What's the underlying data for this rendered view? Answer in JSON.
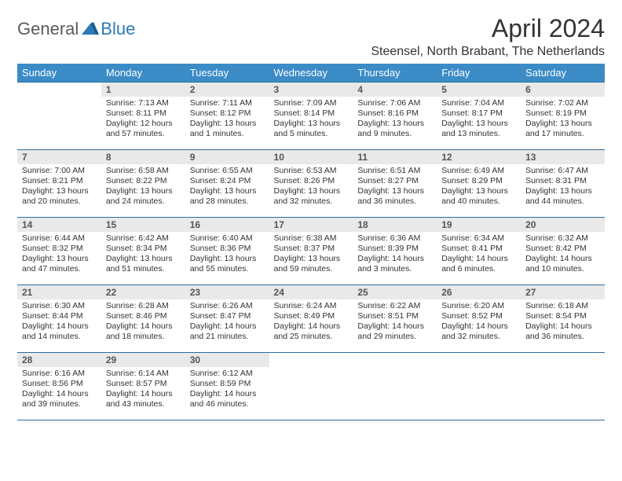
{
  "logo": {
    "text1": "General",
    "text2": "Blue"
  },
  "title": "April 2024",
  "location": "Steensel, North Brabant, The Netherlands",
  "colors": {
    "header_bg": "#3b8bc7",
    "header_text": "#ffffff",
    "daynum_bg": "#e9e9e9",
    "border": "#2f6a9c",
    "logo_blue": "#2a7ab8"
  },
  "dow": [
    "Sunday",
    "Monday",
    "Tuesday",
    "Wednesday",
    "Thursday",
    "Friday",
    "Saturday"
  ],
  "weeks": [
    [
      {
        "n": "",
        "sr": "",
        "ss": "",
        "dl": ""
      },
      {
        "n": "1",
        "sr": "Sunrise: 7:13 AM",
        "ss": "Sunset: 8:11 PM",
        "dl": "Daylight: 12 hours and 57 minutes."
      },
      {
        "n": "2",
        "sr": "Sunrise: 7:11 AM",
        "ss": "Sunset: 8:12 PM",
        "dl": "Daylight: 13 hours and 1 minutes."
      },
      {
        "n": "3",
        "sr": "Sunrise: 7:09 AM",
        "ss": "Sunset: 8:14 PM",
        "dl": "Daylight: 13 hours and 5 minutes."
      },
      {
        "n": "4",
        "sr": "Sunrise: 7:06 AM",
        "ss": "Sunset: 8:16 PM",
        "dl": "Daylight: 13 hours and 9 minutes."
      },
      {
        "n": "5",
        "sr": "Sunrise: 7:04 AM",
        "ss": "Sunset: 8:17 PM",
        "dl": "Daylight: 13 hours and 13 minutes."
      },
      {
        "n": "6",
        "sr": "Sunrise: 7:02 AM",
        "ss": "Sunset: 8:19 PM",
        "dl": "Daylight: 13 hours and 17 minutes."
      }
    ],
    [
      {
        "n": "7",
        "sr": "Sunrise: 7:00 AM",
        "ss": "Sunset: 8:21 PM",
        "dl": "Daylight: 13 hours and 20 minutes."
      },
      {
        "n": "8",
        "sr": "Sunrise: 6:58 AM",
        "ss": "Sunset: 8:22 PM",
        "dl": "Daylight: 13 hours and 24 minutes."
      },
      {
        "n": "9",
        "sr": "Sunrise: 6:55 AM",
        "ss": "Sunset: 8:24 PM",
        "dl": "Daylight: 13 hours and 28 minutes."
      },
      {
        "n": "10",
        "sr": "Sunrise: 6:53 AM",
        "ss": "Sunset: 8:26 PM",
        "dl": "Daylight: 13 hours and 32 minutes."
      },
      {
        "n": "11",
        "sr": "Sunrise: 6:51 AM",
        "ss": "Sunset: 8:27 PM",
        "dl": "Daylight: 13 hours and 36 minutes."
      },
      {
        "n": "12",
        "sr": "Sunrise: 6:49 AM",
        "ss": "Sunset: 8:29 PM",
        "dl": "Daylight: 13 hours and 40 minutes."
      },
      {
        "n": "13",
        "sr": "Sunrise: 6:47 AM",
        "ss": "Sunset: 8:31 PM",
        "dl": "Daylight: 13 hours and 44 minutes."
      }
    ],
    [
      {
        "n": "14",
        "sr": "Sunrise: 6:44 AM",
        "ss": "Sunset: 8:32 PM",
        "dl": "Daylight: 13 hours and 47 minutes."
      },
      {
        "n": "15",
        "sr": "Sunrise: 6:42 AM",
        "ss": "Sunset: 8:34 PM",
        "dl": "Daylight: 13 hours and 51 minutes."
      },
      {
        "n": "16",
        "sr": "Sunrise: 6:40 AM",
        "ss": "Sunset: 8:36 PM",
        "dl": "Daylight: 13 hours and 55 minutes."
      },
      {
        "n": "17",
        "sr": "Sunrise: 6:38 AM",
        "ss": "Sunset: 8:37 PM",
        "dl": "Daylight: 13 hours and 59 minutes."
      },
      {
        "n": "18",
        "sr": "Sunrise: 6:36 AM",
        "ss": "Sunset: 8:39 PM",
        "dl": "Daylight: 14 hours and 3 minutes."
      },
      {
        "n": "19",
        "sr": "Sunrise: 6:34 AM",
        "ss": "Sunset: 8:41 PM",
        "dl": "Daylight: 14 hours and 6 minutes."
      },
      {
        "n": "20",
        "sr": "Sunrise: 6:32 AM",
        "ss": "Sunset: 8:42 PM",
        "dl": "Daylight: 14 hours and 10 minutes."
      }
    ],
    [
      {
        "n": "21",
        "sr": "Sunrise: 6:30 AM",
        "ss": "Sunset: 8:44 PM",
        "dl": "Daylight: 14 hours and 14 minutes."
      },
      {
        "n": "22",
        "sr": "Sunrise: 6:28 AM",
        "ss": "Sunset: 8:46 PM",
        "dl": "Daylight: 14 hours and 18 minutes."
      },
      {
        "n": "23",
        "sr": "Sunrise: 6:26 AM",
        "ss": "Sunset: 8:47 PM",
        "dl": "Daylight: 14 hours and 21 minutes."
      },
      {
        "n": "24",
        "sr": "Sunrise: 6:24 AM",
        "ss": "Sunset: 8:49 PM",
        "dl": "Daylight: 14 hours and 25 minutes."
      },
      {
        "n": "25",
        "sr": "Sunrise: 6:22 AM",
        "ss": "Sunset: 8:51 PM",
        "dl": "Daylight: 14 hours and 29 minutes."
      },
      {
        "n": "26",
        "sr": "Sunrise: 6:20 AM",
        "ss": "Sunset: 8:52 PM",
        "dl": "Daylight: 14 hours and 32 minutes."
      },
      {
        "n": "27",
        "sr": "Sunrise: 6:18 AM",
        "ss": "Sunset: 8:54 PM",
        "dl": "Daylight: 14 hours and 36 minutes."
      }
    ],
    [
      {
        "n": "28",
        "sr": "Sunrise: 6:16 AM",
        "ss": "Sunset: 8:56 PM",
        "dl": "Daylight: 14 hours and 39 minutes."
      },
      {
        "n": "29",
        "sr": "Sunrise: 6:14 AM",
        "ss": "Sunset: 8:57 PM",
        "dl": "Daylight: 14 hours and 43 minutes."
      },
      {
        "n": "30",
        "sr": "Sunrise: 6:12 AM",
        "ss": "Sunset: 8:59 PM",
        "dl": "Daylight: 14 hours and 46 minutes."
      },
      {
        "n": "",
        "sr": "",
        "ss": "",
        "dl": ""
      },
      {
        "n": "",
        "sr": "",
        "ss": "",
        "dl": ""
      },
      {
        "n": "",
        "sr": "",
        "ss": "",
        "dl": ""
      },
      {
        "n": "",
        "sr": "",
        "ss": "",
        "dl": ""
      }
    ]
  ]
}
